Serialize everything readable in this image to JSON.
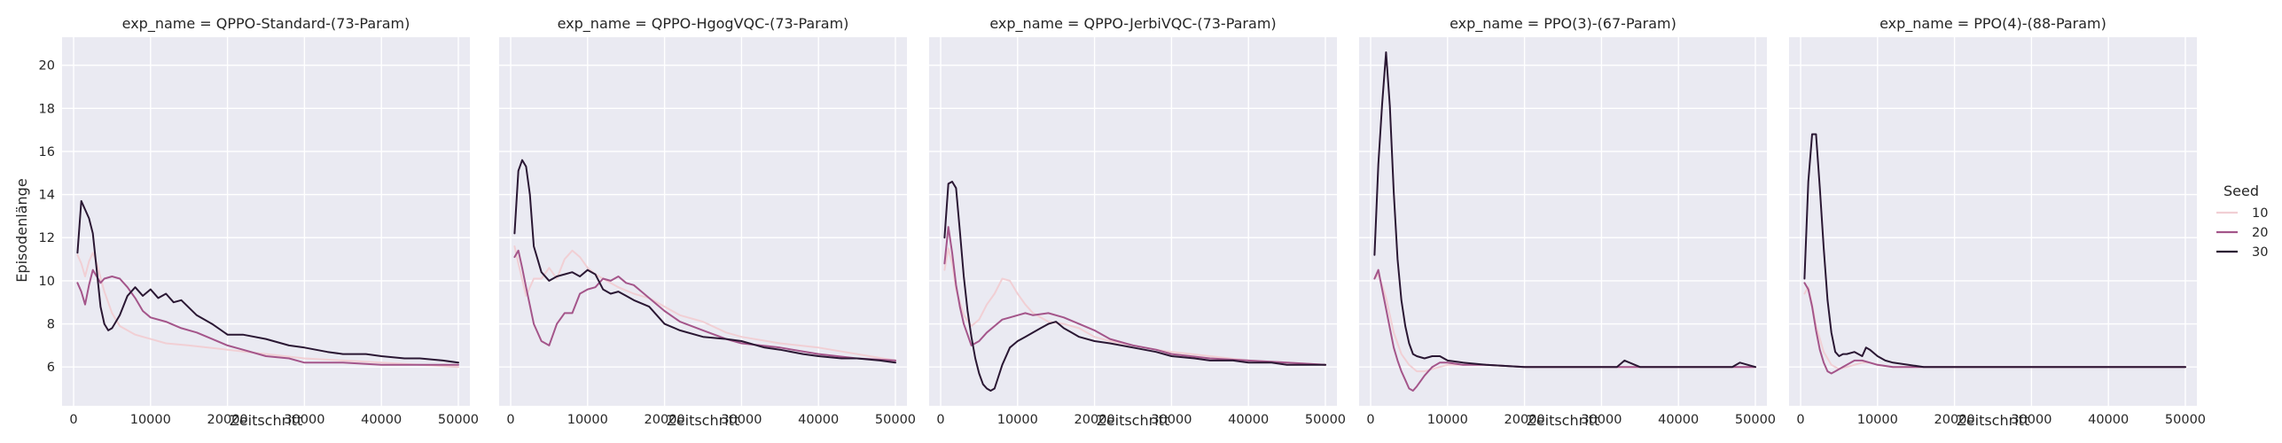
{
  "chart_data": {
    "type": "line",
    "facet_variable": "exp_name",
    "xlabel": "Zeitschritt",
    "ylabel": "Episodenlänge",
    "xlim": [
      -1500,
      51500
    ],
    "ylim": [
      4.2,
      21.3
    ],
    "xticks": [
      0,
      10000,
      20000,
      30000,
      40000,
      50000
    ],
    "yticks": [
      6,
      8,
      10,
      12,
      14,
      16,
      18,
      20
    ],
    "grid": true,
    "legend": {
      "title": "Seed",
      "placement": "right",
      "entries": [
        {
          "label": "10",
          "color": "#f1cfd4"
        },
        {
          "label": "20",
          "color": "#a4558a"
        },
        {
          "label": "30",
          "color": "#2a1733"
        }
      ]
    },
    "facets": [
      {
        "title": "exp_name = QPPO-Standard-(73-Param)",
        "series": [
          {
            "seed": "10",
            "x": [
              500,
              1000,
              1500,
              2000,
              2500,
              3000,
              4000,
              5000,
              6000,
              8000,
              10000,
              12000,
              15000,
              20000,
              25000,
              30000,
              35000,
              40000,
              45000,
              50000
            ],
            "y": [
              11.2,
              10.8,
              10.2,
              10.9,
              11.3,
              10.8,
              9.5,
              8.5,
              7.9,
              7.5,
              7.3,
              7.1,
              7.0,
              6.8,
              6.6,
              6.4,
              6.3,
              6.2,
              6.1,
              6.0
            ]
          },
          {
            "seed": "20",
            "x": [
              500,
              1000,
              1500,
              2000,
              2500,
              3000,
              3500,
              4000,
              5000,
              6000,
              7000,
              8000,
              9000,
              10000,
              12000,
              14000,
              16000,
              18000,
              20000,
              22000,
              25000,
              28000,
              30000,
              35000,
              40000,
              45000,
              50000
            ],
            "y": [
              9.9,
              9.5,
              8.9,
              9.8,
              10.5,
              10.2,
              9.9,
              10.1,
              10.2,
              10.1,
              9.7,
              9.2,
              8.6,
              8.3,
              8.1,
              7.8,
              7.6,
              7.3,
              7.0,
              6.8,
              6.5,
              6.4,
              6.2,
              6.2,
              6.1,
              6.1,
              6.1
            ]
          },
          {
            "seed": "30",
            "x": [
              500,
              1000,
              2000,
              2500,
              3000,
              3500,
              4000,
              4500,
              5000,
              6000,
              7000,
              8000,
              9000,
              10000,
              11000,
              12000,
              13000,
              14000,
              16000,
              18000,
              20000,
              22000,
              25000,
              28000,
              30000,
              33000,
              35000,
              38000,
              40000,
              43000,
              45000,
              48000,
              50000
            ],
            "y": [
              11.3,
              13.7,
              12.9,
              12.2,
              10.5,
              8.8,
              8.0,
              7.7,
              7.8,
              8.4,
              9.3,
              9.7,
              9.3,
              9.6,
              9.2,
              9.4,
              9.0,
              9.1,
              8.4,
              8.0,
              7.5,
              7.5,
              7.3,
              7.0,
              6.9,
              6.7,
              6.6,
              6.6,
              6.5,
              6.4,
              6.4,
              6.3,
              6.2
            ]
          }
        ]
      },
      {
        "title": "exp_name = QPPO-HgogVQC-(73-Param)",
        "series": [
          {
            "seed": "10",
            "x": [
              500,
              1000,
              2000,
              3000,
              4000,
              5000,
              6000,
              7000,
              8000,
              9000,
              10000,
              11000,
              12000,
              14000,
              16000,
              18000,
              20000,
              22000,
              25000,
              28000,
              30000,
              35000,
              40000,
              45000,
              50000
            ],
            "y": [
              11.6,
              10.8,
              9.3,
              10.1,
              10.1,
              10.6,
              10.1,
              11.0,
              11.4,
              11.1,
              10.6,
              10.3,
              10.1,
              9.7,
              9.4,
              9.2,
              8.8,
              8.4,
              8.1,
              7.6,
              7.4,
              7.1,
              6.9,
              6.6,
              6.3
            ]
          },
          {
            "seed": "20",
            "x": [
              500,
              1000,
              1500,
              2000,
              3000,
              4000,
              5000,
              6000,
              7000,
              8000,
              9000,
              10000,
              11000,
              12000,
              13000,
              14000,
              15000,
              16000,
              17000,
              18000,
              20000,
              22000,
              25000,
              28000,
              30000,
              35000,
              40000,
              45000,
              50000
            ],
            "y": [
              11.1,
              11.4,
              10.6,
              9.7,
              8.0,
              7.2,
              7.0,
              8.0,
              8.5,
              8.5,
              9.4,
              9.6,
              9.7,
              10.1,
              10.0,
              10.2,
              9.9,
              9.8,
              9.5,
              9.2,
              8.6,
              8.1,
              7.7,
              7.3,
              7.1,
              6.9,
              6.6,
              6.4,
              6.3
            ]
          },
          {
            "seed": "30",
            "x": [
              500,
              1000,
              1500,
              2000,
              2500,
              3000,
              4000,
              5000,
              6000,
              7000,
              8000,
              9000,
              10000,
              11000,
              12000,
              13000,
              14000,
              15000,
              16000,
              18000,
              20000,
              22000,
              25000,
              28000,
              30000,
              33000,
              35000,
              38000,
              40000,
              43000,
              45000,
              48000,
              50000
            ],
            "y": [
              12.2,
              15.1,
              15.6,
              15.3,
              14.0,
              11.6,
              10.4,
              10.0,
              10.2,
              10.3,
              10.4,
              10.2,
              10.5,
              10.3,
              9.6,
              9.4,
              9.5,
              9.3,
              9.1,
              8.8,
              8.0,
              7.7,
              7.4,
              7.3,
              7.2,
              6.9,
              6.8,
              6.6,
              6.5,
              6.4,
              6.4,
              6.3,
              6.2
            ]
          }
        ]
      },
      {
        "title": "exp_name = QPPO-JerbiVQC-(73-Param)",
        "series": [
          {
            "seed": "10",
            "x": [
              500,
              1000,
              1500,
              2000,
              2500,
              3000,
              4000,
              5000,
              6000,
              7000,
              8000,
              9000,
              10000,
              11000,
              12000,
              14000,
              16000,
              18000,
              20000,
              22000,
              25000,
              28000,
              30000,
              35000,
              40000,
              45000,
              50000
            ],
            "y": [
              10.5,
              11.5,
              10.8,
              9.6,
              9.0,
              8.4,
              7.9,
              8.2,
              8.9,
              9.4,
              10.1,
              10.0,
              9.4,
              8.9,
              8.5,
              8.1,
              8.0,
              7.8,
              7.4,
              7.2,
              7.0,
              6.8,
              6.7,
              6.5,
              6.3,
              6.2,
              6.1
            ]
          },
          {
            "seed": "20",
            "x": [
              500,
              1000,
              1500,
              2000,
              2500,
              3000,
              4000,
              5000,
              6000,
              7000,
              8000,
              9000,
              10000,
              11000,
              12000,
              14000,
              16000,
              18000,
              20000,
              22000,
              25000,
              28000,
              30000,
              35000,
              40000,
              45000,
              50000
            ],
            "y": [
              10.8,
              12.5,
              11.3,
              9.8,
              8.8,
              8.0,
              7.0,
              7.2,
              7.6,
              7.9,
              8.2,
              8.3,
              8.4,
              8.5,
              8.4,
              8.5,
              8.3,
              8.0,
              7.7,
              7.3,
              7.0,
              6.8,
              6.6,
              6.4,
              6.3,
              6.2,
              6.1
            ]
          },
          {
            "seed": "30",
            "x": [
              500,
              1000,
              1500,
              2000,
              2500,
              3000,
              3500,
              4000,
              4500,
              5000,
              5500,
              6000,
              6500,
              7000,
              8000,
              9000,
              10000,
              11000,
              12000,
              13000,
              14000,
              15000,
              16000,
              17000,
              18000,
              20000,
              22000,
              25000,
              28000,
              30000,
              33000,
              35000,
              38000,
              40000,
              43000,
              45000,
              48000,
              50000
            ],
            "y": [
              12.0,
              14.5,
              14.6,
              14.3,
              12.3,
              10.2,
              8.6,
              7.4,
              6.4,
              5.7,
              5.2,
              5.0,
              4.9,
              5.0,
              6.1,
              6.9,
              7.2,
              7.4,
              7.6,
              7.8,
              8.0,
              8.1,
              7.8,
              7.6,
              7.4,
              7.2,
              7.1,
              6.9,
              6.7,
              6.5,
              6.4,
              6.3,
              6.3,
              6.2,
              6.2,
              6.1,
              6.1,
              6.1
            ]
          }
        ]
      },
      {
        "title": "exp_name = PPO(3)-(67-Param)",
        "series": [
          {
            "seed": "10",
            "x": [
              500,
              1000,
              1500,
              2000,
              2500,
              3000,
              4000,
              5000,
              6000,
              7000,
              8000,
              9000,
              10000,
              12000,
              15000,
              20000,
              25000,
              30000,
              35000,
              40000,
              45000,
              50000
            ],
            "y": [
              10.1,
              10.3,
              9.8,
              9.2,
              8.4,
              7.6,
              6.6,
              6.1,
              5.8,
              5.8,
              5.9,
              6.0,
              6.1,
              6.1,
              6.1,
              6.0,
              6.0,
              6.0,
              6.0,
              6.0,
              6.0,
              6.0
            ]
          },
          {
            "seed": "20",
            "x": [
              500,
              1000,
              1500,
              2000,
              2500,
              3000,
              3500,
              4000,
              4500,
              5000,
              5500,
              6000,
              7000,
              8000,
              9000,
              10000,
              12000,
              15000,
              20000,
              25000,
              30000,
              35000,
              40000,
              45000,
              50000
            ],
            "y": [
              10.1,
              10.5,
              9.6,
              8.7,
              7.8,
              6.9,
              6.3,
              5.8,
              5.4,
              5.0,
              4.9,
              5.1,
              5.6,
              6.0,
              6.2,
              6.2,
              6.1,
              6.1,
              6.0,
              6.0,
              6.0,
              6.0,
              6.0,
              6.0,
              6.0
            ]
          },
          {
            "seed": "30",
            "x": [
              500,
              1000,
              1500,
              2000,
              2500,
              3000,
              3500,
              4000,
              4500,
              5000,
              5500,
              6000,
              7000,
              8000,
              9000,
              10000,
              12000,
              15000,
              20000,
              25000,
              30000,
              32000,
              33000,
              35000,
              40000,
              45000,
              47000,
              48000,
              50000
            ],
            "y": [
              11.2,
              15.4,
              18.2,
              20.6,
              18.1,
              14.1,
              11.0,
              9.1,
              7.9,
              7.1,
              6.6,
              6.5,
              6.4,
              6.5,
              6.5,
              6.3,
              6.2,
              6.1,
              6.0,
              6.0,
              6.0,
              6.0,
              6.3,
              6.0,
              6.0,
              6.0,
              6.0,
              6.2,
              6.0
            ]
          }
        ]
      },
      {
        "title": "exp_name = PPO(4)-(88-Param)",
        "series": [
          {
            "seed": "10",
            "x": [
              500,
              1000,
              1500,
              2000,
              3000,
              4000,
              5000,
              6000,
              7000,
              8000,
              9000,
              10000,
              12000,
              15000,
              20000,
              25000,
              30000,
              40000,
              50000
            ],
            "y": [
              9.4,
              9.7,
              8.9,
              7.9,
              6.7,
              6.1,
              5.9,
              6.0,
              6.1,
              6.2,
              6.2,
              6.1,
              6.0,
              6.0,
              6.0,
              6.0,
              6.0,
              6.0,
              6.0
            ]
          },
          {
            "seed": "20",
            "x": [
              500,
              1000,
              1500,
              2000,
              2500,
              3000,
              3500,
              4000,
              4500,
              5000,
              6000,
              7000,
              8000,
              9000,
              10000,
              12000,
              15000,
              20000,
              25000,
              30000,
              40000,
              50000
            ],
            "y": [
              9.9,
              9.6,
              8.8,
              7.7,
              6.8,
              6.2,
              5.8,
              5.7,
              5.8,
              5.9,
              6.1,
              6.3,
              6.3,
              6.2,
              6.1,
              6.0,
              6.0,
              6.0,
              6.0,
              6.0,
              6.0,
              6.0
            ]
          },
          {
            "seed": "30",
            "x": [
              500,
              1000,
              1500,
              2000,
              2500,
              3000,
              3500,
              4000,
              4500,
              5000,
              5500,
              6000,
              7000,
              8000,
              8500,
              9000,
              10000,
              11000,
              12000,
              14000,
              16000,
              20000,
              25000,
              30000,
              40000,
              50000
            ],
            "y": [
              10.1,
              14.6,
              16.8,
              16.8,
              14.3,
              11.5,
              9.1,
              7.6,
              6.7,
              6.5,
              6.6,
              6.6,
              6.7,
              6.5,
              6.9,
              6.8,
              6.5,
              6.3,
              6.2,
              6.1,
              6.0,
              6.0,
              6.0,
              6.0,
              6.0,
              6.0
            ]
          }
        ]
      }
    ]
  }
}
